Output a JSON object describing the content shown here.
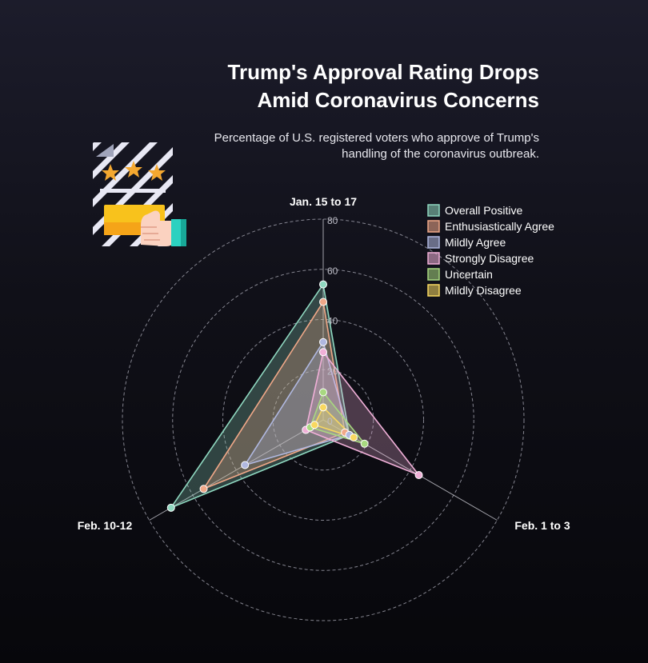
{
  "header": {
    "title_lines": [
      "Trump's Approval Rating Drops",
      "Amid Coronavirus Concerns"
    ],
    "subtitle_lines": [
      "Percentage of U.S. registered voters who approve of Trump's",
      "handling of the coronavirus outbreak."
    ]
  },
  "icon": {
    "name": "rating-thumbs-up-icon"
  },
  "chart_data": {
    "type": "radar",
    "categories": [
      "Jan. 15 to 17",
      "Feb. 1 to 3",
      "Feb. 10-12"
    ],
    "rlim": [
      0,
      80
    ],
    "ticks": [
      0,
      20,
      40,
      60,
      80
    ],
    "grid": true,
    "legend_position": "top-right",
    "series": [
      {
        "name": "Overall Positive",
        "values": [
          54,
          12,
          70
        ],
        "color": "#8fd8c0"
      },
      {
        "name": "Enthusiastically Agree",
        "values": [
          47,
          10,
          55
        ],
        "color": "#f0a888"
      },
      {
        "name": "Mildly Agree",
        "values": [
          31,
          12,
          36
        ],
        "color": "#b0b8e0"
      },
      {
        "name": "Strongly Disagree",
        "values": [
          27,
          44,
          8
        ],
        "color": "#f0b0d8"
      },
      {
        "name": "Uncertain",
        "values": [
          11,
          19,
          6
        ],
        "color": "#a8d880"
      },
      {
        "name": "Mildly Disagree",
        "values": [
          5,
          14,
          4
        ],
        "color": "#f8d860"
      }
    ]
  }
}
